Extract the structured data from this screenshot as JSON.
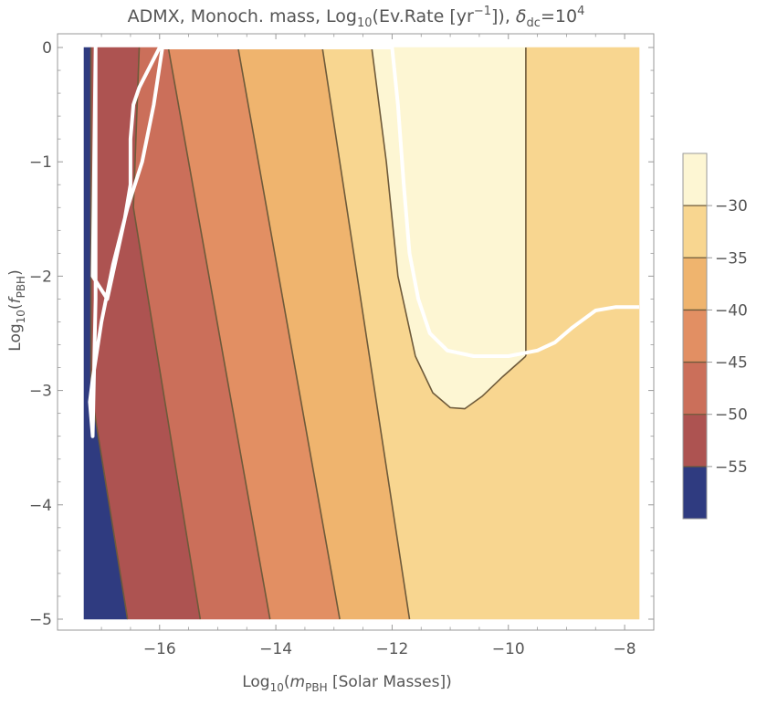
{
  "chart_data": {
    "type": "heatmap",
    "title": {
      "prefix": "ADMX, Monoch. mass, Log",
      "sub1": "10",
      "mid": "(Ev.Rate [yr",
      "sup1": "−1",
      "suffix": "]), ",
      "delta": "δ",
      "sub2": "dc",
      "eq": "=10",
      "sup2": "4"
    },
    "xlabel": {
      "pre": "Log",
      "sub": "10",
      "paren": "(",
      "var": "m",
      "varsub": "PBH",
      "post": " [Solar Masses])"
    },
    "ylabel": {
      "pre": "Log",
      "sub": "10",
      "paren": "(",
      "var": "f",
      "varsub": "PBH",
      "post": ")"
    },
    "x_range": [
      -17.3,
      -7.75
    ],
    "y_range": [
      -5,
      0
    ],
    "x_ticks": [
      {
        "value": -16,
        "label": "−16"
      },
      {
        "value": -14,
        "label": "−14"
      },
      {
        "value": -12,
        "label": "−12"
      },
      {
        "value": -10,
        "label": "−10"
      },
      {
        "value": -8,
        "label": "−8"
      }
    ],
    "y_ticks": [
      {
        "value": 0,
        "label": "0"
      },
      {
        "value": -1,
        "label": "−1"
      },
      {
        "value": -2,
        "label": "−2"
      },
      {
        "value": -3,
        "label": "−3"
      },
      {
        "value": -4,
        "label": "−4"
      },
      {
        "value": -5,
        "label": "−5"
      }
    ],
    "colorbar": {
      "levels": [
        -25,
        -30,
        -35,
        -40,
        -45,
        -50,
        -55,
        -60
      ],
      "tick_labels": [
        "−30",
        "−35",
        "−40",
        "−45",
        "−50",
        "−55"
      ],
      "colors": [
        "#fdf6d3",
        "#f8d690",
        "#efb46e",
        "#e28f63",
        "#cb6f5a",
        "#ad5351",
        "#2f3b80"
      ]
    },
    "regions": [
      {
        "name": "band-lt-55",
        "color": "#2f3b80",
        "points": [
          [
            -17.3,
            0
          ],
          [
            -17.18,
            0
          ],
          [
            -17.18,
            -3.0
          ],
          [
            -16.55,
            -5
          ],
          [
            -17.3,
            -5
          ]
        ]
      },
      {
        "name": "band-55-50",
        "color": "#ad5351",
        "points": [
          [
            -17.18,
            0
          ],
          [
            -16.35,
            0
          ],
          [
            -16.45,
            -1.4
          ],
          [
            -15.3,
            -5
          ],
          [
            -16.55,
            -5
          ],
          [
            -17.18,
            -3.0
          ]
        ]
      },
      {
        "name": "band-50-45",
        "color": "#cb6f5a",
        "points": [
          [
            -16.35,
            0
          ],
          [
            -15.85,
            0
          ],
          [
            -14.1,
            -5
          ],
          [
            -15.3,
            -5
          ],
          [
            -16.45,
            -1.4
          ]
        ]
      },
      {
        "name": "band-45-40",
        "color": "#e28f63",
        "points": [
          [
            -15.85,
            0
          ],
          [
            -14.65,
            0
          ],
          [
            -12.9,
            -5
          ],
          [
            -14.1,
            -5
          ]
        ]
      },
      {
        "name": "band-40-35",
        "color": "#efb46e",
        "points": [
          [
            -14.65,
            0
          ],
          [
            -13.2,
            0
          ],
          [
            -11.7,
            -5
          ],
          [
            -12.9,
            -5
          ]
        ]
      },
      {
        "name": "band-35-30",
        "color": "#f8d690",
        "points": [
          [
            -13.2,
            0
          ],
          [
            -12.35,
            0
          ],
          [
            -12.1,
            -1.0
          ],
          [
            -11.9,
            -2.0
          ],
          [
            -11.6,
            -2.7
          ],
          [
            -11.3,
            -3.02
          ],
          [
            -11.0,
            -3.15
          ],
          [
            -10.75,
            -3.16
          ],
          [
            -10.45,
            -3.05
          ],
          [
            -10.1,
            -2.88
          ],
          [
            -9.7,
            -2.7
          ],
          [
            -9.7,
            0
          ],
          [
            -7.75,
            0
          ],
          [
            -7.75,
            -5
          ],
          [
            -11.7,
            -5
          ]
        ]
      },
      {
        "name": "band-gt-30",
        "color": "#fdf6d3",
        "points": [
          [
            -12.35,
            0
          ],
          [
            -9.7,
            0
          ],
          [
            -9.7,
            -2.7
          ],
          [
            -10.1,
            -2.88
          ],
          [
            -10.45,
            -3.05
          ],
          [
            -10.75,
            -3.16
          ],
          [
            -11.0,
            -3.15
          ],
          [
            -11.3,
            -3.02
          ],
          [
            -11.6,
            -2.7
          ],
          [
            -11.9,
            -2.0
          ],
          [
            -12.1,
            -1.0
          ]
        ]
      }
    ],
    "contours": [
      {
        "name": "contour-minus-55",
        "points": [
          [
            -17.18,
            0
          ],
          [
            -17.18,
            -3.0
          ],
          [
            -16.55,
            -5
          ]
        ]
      },
      {
        "name": "contour-minus-50",
        "points": [
          [
            -16.35,
            0
          ],
          [
            -16.45,
            -1.4
          ],
          [
            -15.3,
            -5
          ]
        ]
      },
      {
        "name": "contour-minus-45",
        "points": [
          [
            -15.85,
            0
          ],
          [
            -14.1,
            -5
          ]
        ]
      },
      {
        "name": "contour-minus-40",
        "points": [
          [
            -14.65,
            0
          ],
          [
            -12.9,
            -5
          ]
        ]
      },
      {
        "name": "contour-minus-35",
        "points": [
          [
            -13.2,
            0
          ],
          [
            -11.7,
            -5
          ]
        ]
      },
      {
        "name": "contour-minus-30-curve",
        "points": [
          [
            -12.35,
            0
          ],
          [
            -12.1,
            -1.0
          ],
          [
            -11.9,
            -2.0
          ],
          [
            -11.6,
            -2.7
          ],
          [
            -11.3,
            -3.02
          ],
          [
            -11.0,
            -3.15
          ],
          [
            -10.75,
            -3.16
          ],
          [
            -10.45,
            -3.05
          ],
          [
            -10.1,
            -2.88
          ],
          [
            -9.7,
            -2.7
          ]
        ]
      },
      {
        "name": "contour-minus-30-vertical",
        "points": [
          [
            -9.7,
            0
          ],
          [
            -9.7,
            -2.7
          ]
        ]
      }
    ],
    "boundary": {
      "name": "white-exclusion-boundary",
      "points": [
        [
          -15.95,
          0
        ],
        [
          -16.1,
          -0.5
        ],
        [
          -16.3,
          -1.0
        ],
        [
          -16.55,
          -1.4
        ],
        [
          -16.8,
          -1.9
        ],
        [
          -17.0,
          -2.4
        ],
        [
          -17.15,
          -2.9
        ],
        [
          -17.2,
          -3.1
        ],
        [
          -17.15,
          -3.4
        ],
        [
          -17.1,
          -2.2
        ],
        [
          -17.1,
          0
        ],
        [
          -17.15,
          -2.0
        ],
        [
          -16.9,
          -2.2
        ],
        [
          -16.6,
          -1.5
        ],
        [
          -16.5,
          -1.2
        ],
        [
          -16.5,
          -0.8
        ],
        [
          -16.45,
          -0.5
        ],
        [
          -16.35,
          -0.35
        ],
        [
          -16.0,
          0
        ],
        [
          -12.0,
          0
        ],
        [
          -11.9,
          -0.5
        ],
        [
          -11.8,
          -1.2
        ],
        [
          -11.7,
          -1.8
        ],
        [
          -11.55,
          -2.2
        ],
        [
          -11.35,
          -2.5
        ],
        [
          -11.05,
          -2.65
        ],
        [
          -10.6,
          -2.7
        ],
        [
          -10.0,
          -2.7
        ],
        [
          -9.5,
          -2.65
        ],
        [
          -9.2,
          -2.58
        ],
        [
          -8.9,
          -2.45
        ],
        [
          -8.5,
          -2.3
        ],
        [
          -8.15,
          -2.27
        ],
        [
          -7.75,
          -2.27
        ]
      ]
    }
  }
}
